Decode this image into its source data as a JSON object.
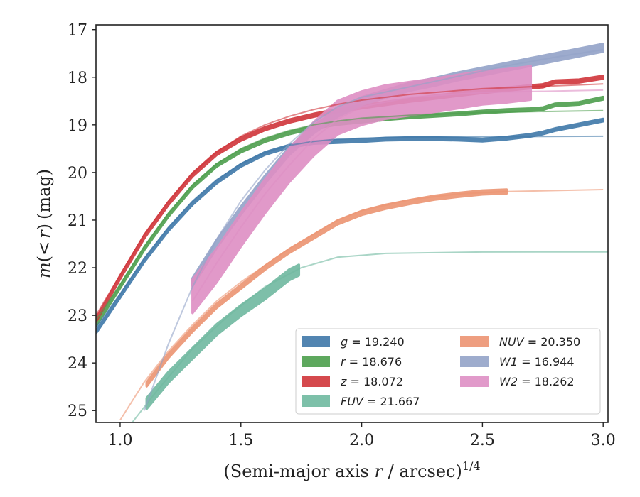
{
  "chart_data": {
    "type": "line",
    "xlabel": "(Semi-major axis r / arcsec)",
    "xlabel_parts": {
      "pre": "(Semi-major axis ",
      "var": "r",
      "post": " / arcsec)",
      "sup": "1/4"
    },
    "ylabel": "m(< r) (mag)",
    "ylabel_parts": {
      "m": "m",
      "open": "(",
      "lt": "<",
      "r": "r",
      "close": ")",
      "unit": "(mag)"
    },
    "xlim": [
      0.9,
      3.02
    ],
    "ylim": [
      25.25,
      16.9
    ],
    "y_inverted": true,
    "xticks": [
      "1.0",
      "1.5",
      "2.0",
      "2.5",
      "3.0"
    ],
    "yticks": [
      "17",
      "18",
      "19",
      "20",
      "21",
      "22",
      "23",
      "24",
      "25"
    ],
    "legend_position": "lower-right",
    "legend_columns": 2,
    "series": [
      {
        "name": "g",
        "legend": "g = 19.240",
        "legend_sym": "g",
        "legend_val": "= 19.240",
        "color": "#3f78a9",
        "band_width": 0.05,
        "data": [
          [
            0.9,
            23.35
          ],
          [
            1.0,
            22.6
          ],
          [
            1.1,
            21.85
          ],
          [
            1.2,
            21.2
          ],
          [
            1.3,
            20.65
          ],
          [
            1.4,
            20.2
          ],
          [
            1.5,
            19.85
          ],
          [
            1.6,
            19.6
          ],
          [
            1.7,
            19.45
          ],
          [
            1.8,
            19.37
          ],
          [
            1.9,
            19.35
          ],
          [
            2.0,
            19.33
          ],
          [
            2.1,
            19.3
          ],
          [
            2.2,
            19.29
          ],
          [
            2.3,
            19.29
          ],
          [
            2.4,
            19.3
          ],
          [
            2.5,
            19.32
          ],
          [
            2.6,
            19.28
          ],
          [
            2.7,
            19.22
          ],
          [
            2.75,
            19.17
          ],
          [
            2.8,
            19.1
          ],
          [
            2.9,
            19.0
          ],
          [
            3.0,
            18.9
          ]
        ],
        "model": [
          [
            0.9,
            23.25
          ],
          [
            1.0,
            22.55
          ],
          [
            1.1,
            21.8
          ],
          [
            1.2,
            21.15
          ],
          [
            1.3,
            20.6
          ],
          [
            1.4,
            20.15
          ],
          [
            1.5,
            19.82
          ],
          [
            1.6,
            19.58
          ],
          [
            1.7,
            19.43
          ],
          [
            1.8,
            19.35
          ],
          [
            1.9,
            19.3
          ],
          [
            2.0,
            19.28
          ],
          [
            2.2,
            19.26
          ],
          [
            2.5,
            19.25
          ],
          [
            3.0,
            19.24
          ]
        ]
      },
      {
        "name": "r",
        "legend": "r = 18.676",
        "legend_sym": "r",
        "legend_val": "= 18.676",
        "color": "#4d9e4d",
        "band_width": 0.05,
        "data": [
          [
            0.9,
            23.2
          ],
          [
            1.0,
            22.4
          ],
          [
            1.1,
            21.6
          ],
          [
            1.2,
            20.9
          ],
          [
            1.3,
            20.3
          ],
          [
            1.4,
            19.85
          ],
          [
            1.5,
            19.55
          ],
          [
            1.6,
            19.33
          ],
          [
            1.7,
            19.17
          ],
          [
            1.8,
            19.05
          ],
          [
            1.9,
            18.97
          ],
          [
            2.0,
            18.92
          ],
          [
            2.1,
            18.87
          ],
          [
            2.2,
            18.83
          ],
          [
            2.3,
            18.8
          ],
          [
            2.4,
            18.77
          ],
          [
            2.5,
            18.73
          ],
          [
            2.6,
            18.7
          ],
          [
            2.7,
            18.68
          ],
          [
            2.75,
            18.66
          ],
          [
            2.8,
            18.58
          ],
          [
            2.9,
            18.55
          ],
          [
            3.0,
            18.44
          ]
        ],
        "model": [
          [
            0.9,
            23.1
          ],
          [
            1.0,
            22.35
          ],
          [
            1.1,
            21.55
          ],
          [
            1.2,
            20.85
          ],
          [
            1.3,
            20.27
          ],
          [
            1.4,
            19.82
          ],
          [
            1.5,
            19.5
          ],
          [
            1.6,
            19.28
          ],
          [
            1.7,
            19.12
          ],
          [
            1.8,
            19.0
          ],
          [
            1.9,
            18.92
          ],
          [
            2.0,
            18.86
          ],
          [
            2.2,
            18.8
          ],
          [
            2.5,
            18.74
          ],
          [
            3.0,
            18.7
          ]
        ]
      },
      {
        "name": "z",
        "legend": "z = 18.072",
        "legend_sym": "z",
        "legend_val": "= 18.072",
        "color": "#d0353a",
        "band_width": 0.06,
        "data": [
          [
            0.9,
            23.1
          ],
          [
            1.0,
            22.2
          ],
          [
            1.1,
            21.35
          ],
          [
            1.2,
            20.65
          ],
          [
            1.3,
            20.05
          ],
          [
            1.4,
            19.6
          ],
          [
            1.5,
            19.3
          ],
          [
            1.6,
            19.08
          ],
          [
            1.7,
            18.92
          ],
          [
            1.8,
            18.8
          ],
          [
            1.9,
            18.7
          ],
          [
            2.0,
            18.62
          ],
          [
            2.1,
            18.55
          ],
          [
            2.2,
            18.48
          ],
          [
            2.3,
            18.42
          ],
          [
            2.4,
            18.36
          ],
          [
            2.5,
            18.3
          ],
          [
            2.6,
            18.25
          ],
          [
            2.7,
            18.2
          ],
          [
            2.75,
            18.18
          ],
          [
            2.8,
            18.1
          ],
          [
            2.9,
            18.08
          ],
          [
            3.0,
            18.0
          ]
        ],
        "model": [
          [
            0.9,
            23.0
          ],
          [
            1.0,
            22.15
          ],
          [
            1.1,
            21.3
          ],
          [
            1.2,
            20.6
          ],
          [
            1.3,
            20.02
          ],
          [
            1.4,
            19.57
          ],
          [
            1.5,
            19.24
          ],
          [
            1.6,
            19.0
          ],
          [
            1.7,
            18.82
          ],
          [
            1.8,
            18.68
          ],
          [
            1.9,
            18.57
          ],
          [
            2.0,
            18.48
          ],
          [
            2.2,
            18.36
          ],
          [
            2.5,
            18.24
          ],
          [
            3.0,
            18.14
          ]
        ]
      },
      {
        "name": "FUV",
        "legend": "FUV = 21.667",
        "legend_sym": "FUV",
        "legend_val": "= 21.667",
        "color": "#6fb9a0",
        "band_width": 0.22,
        "data": [
          [
            1.11,
            24.85
          ],
          [
            1.2,
            24.3
          ],
          [
            1.3,
            23.8
          ],
          [
            1.4,
            23.3
          ],
          [
            1.5,
            22.9
          ],
          [
            1.6,
            22.55
          ],
          [
            1.7,
            22.15
          ],
          [
            1.74,
            22.05
          ]
        ],
        "model": [
          [
            1.05,
            25.25
          ],
          [
            1.15,
            24.6
          ],
          [
            1.3,
            23.7
          ],
          [
            1.45,
            23.0
          ],
          [
            1.6,
            22.4
          ],
          [
            1.75,
            22.0
          ],
          [
            1.9,
            21.78
          ],
          [
            2.1,
            21.7
          ],
          [
            2.5,
            21.67
          ],
          [
            3.02,
            21.667
          ]
        ]
      },
      {
        "name": "NUV",
        "legend": "NUV = 20.350",
        "legend_sym": "NUV",
        "legend_val": "= 20.350",
        "color": "#ec9472",
        "band_width": 0.08,
        "data": [
          [
            1.11,
            24.45
          ],
          [
            1.2,
            23.85
          ],
          [
            1.3,
            23.3
          ],
          [
            1.4,
            22.8
          ],
          [
            1.5,
            22.4
          ],
          [
            1.6,
            22.0
          ],
          [
            1.7,
            21.65
          ],
          [
            1.8,
            21.35
          ],
          [
            1.9,
            21.05
          ],
          [
            2.0,
            20.85
          ],
          [
            2.1,
            20.72
          ],
          [
            2.2,
            20.62
          ],
          [
            2.3,
            20.53
          ],
          [
            2.4,
            20.47
          ],
          [
            2.5,
            20.42
          ],
          [
            2.6,
            20.4
          ]
        ],
        "model": [
          [
            1.0,
            25.2
          ],
          [
            1.1,
            24.4
          ],
          [
            1.2,
            23.75
          ],
          [
            1.3,
            23.2
          ],
          [
            1.4,
            22.7
          ],
          [
            1.5,
            22.3
          ],
          [
            1.6,
            21.95
          ],
          [
            1.7,
            21.6
          ],
          [
            1.8,
            21.3
          ],
          [
            1.9,
            21.0
          ],
          [
            2.0,
            20.8
          ],
          [
            2.2,
            20.57
          ],
          [
            2.4,
            20.45
          ],
          [
            2.6,
            20.4
          ],
          [
            3.0,
            20.36
          ]
        ]
      },
      {
        "name": "W1",
        "legend": "W1 = 16.944",
        "legend_sym": "W1",
        "legend_val": "= 16.944",
        "color": "#93a3c8",
        "band_width": 0.16,
        "data": [
          [
            1.3,
            22.3
          ],
          [
            1.4,
            21.5
          ],
          [
            1.5,
            20.8
          ],
          [
            1.6,
            20.15
          ],
          [
            1.7,
            19.55
          ],
          [
            1.8,
            19.1
          ],
          [
            1.9,
            18.75
          ],
          [
            2.0,
            18.5
          ],
          [
            2.1,
            18.35
          ],
          [
            2.2,
            18.2
          ],
          [
            2.3,
            18.1
          ],
          [
            2.4,
            17.98
          ],
          [
            2.5,
            17.88
          ],
          [
            2.6,
            17.78
          ],
          [
            2.7,
            17.68
          ],
          [
            2.8,
            17.58
          ],
          [
            2.9,
            17.48
          ],
          [
            3.0,
            17.38
          ]
        ],
        "model": [
          [
            1.1,
            25.0
          ],
          [
            1.2,
            23.6
          ],
          [
            1.3,
            22.4
          ],
          [
            1.4,
            21.4
          ],
          [
            1.5,
            20.6
          ],
          [
            1.6,
            19.95
          ],
          [
            1.7,
            19.4
          ],
          [
            1.8,
            18.95
          ],
          [
            1.9,
            18.62
          ],
          [
            2.0,
            18.42
          ],
          [
            2.2,
            18.2
          ],
          [
            2.4,
            17.98
          ],
          [
            2.6,
            17.76
          ],
          [
            2.8,
            17.58
          ],
          [
            3.0,
            17.42
          ]
        ]
      },
      {
        "name": "W2",
        "legend": "W2 = 18.262",
        "legend_sym": "W2",
        "legend_val": "= 18.262",
        "color": "#de8fc4",
        "band_width": 0.7,
        "data": [
          [
            1.3,
            22.6
          ],
          [
            1.4,
            21.95
          ],
          [
            1.5,
            21.2
          ],
          [
            1.6,
            20.5
          ],
          [
            1.7,
            19.85
          ],
          [
            1.8,
            19.3
          ],
          [
            1.9,
            18.85
          ],
          [
            2.0,
            18.65
          ],
          [
            2.1,
            18.52
          ],
          [
            2.2,
            18.45
          ],
          [
            2.3,
            18.38
          ],
          [
            2.4,
            18.3
          ],
          [
            2.5,
            18.22
          ],
          [
            2.6,
            18.18
          ],
          [
            2.7,
            18.12
          ]
        ],
        "model": [
          [
            1.3,
            22.7
          ],
          [
            1.4,
            21.9
          ],
          [
            1.5,
            21.15
          ],
          [
            1.6,
            20.45
          ],
          [
            1.7,
            19.85
          ],
          [
            1.8,
            19.3
          ],
          [
            1.9,
            18.88
          ],
          [
            2.0,
            18.62
          ],
          [
            2.2,
            18.42
          ],
          [
            2.5,
            18.32
          ],
          [
            3.0,
            18.27
          ]
        ]
      }
    ]
  }
}
